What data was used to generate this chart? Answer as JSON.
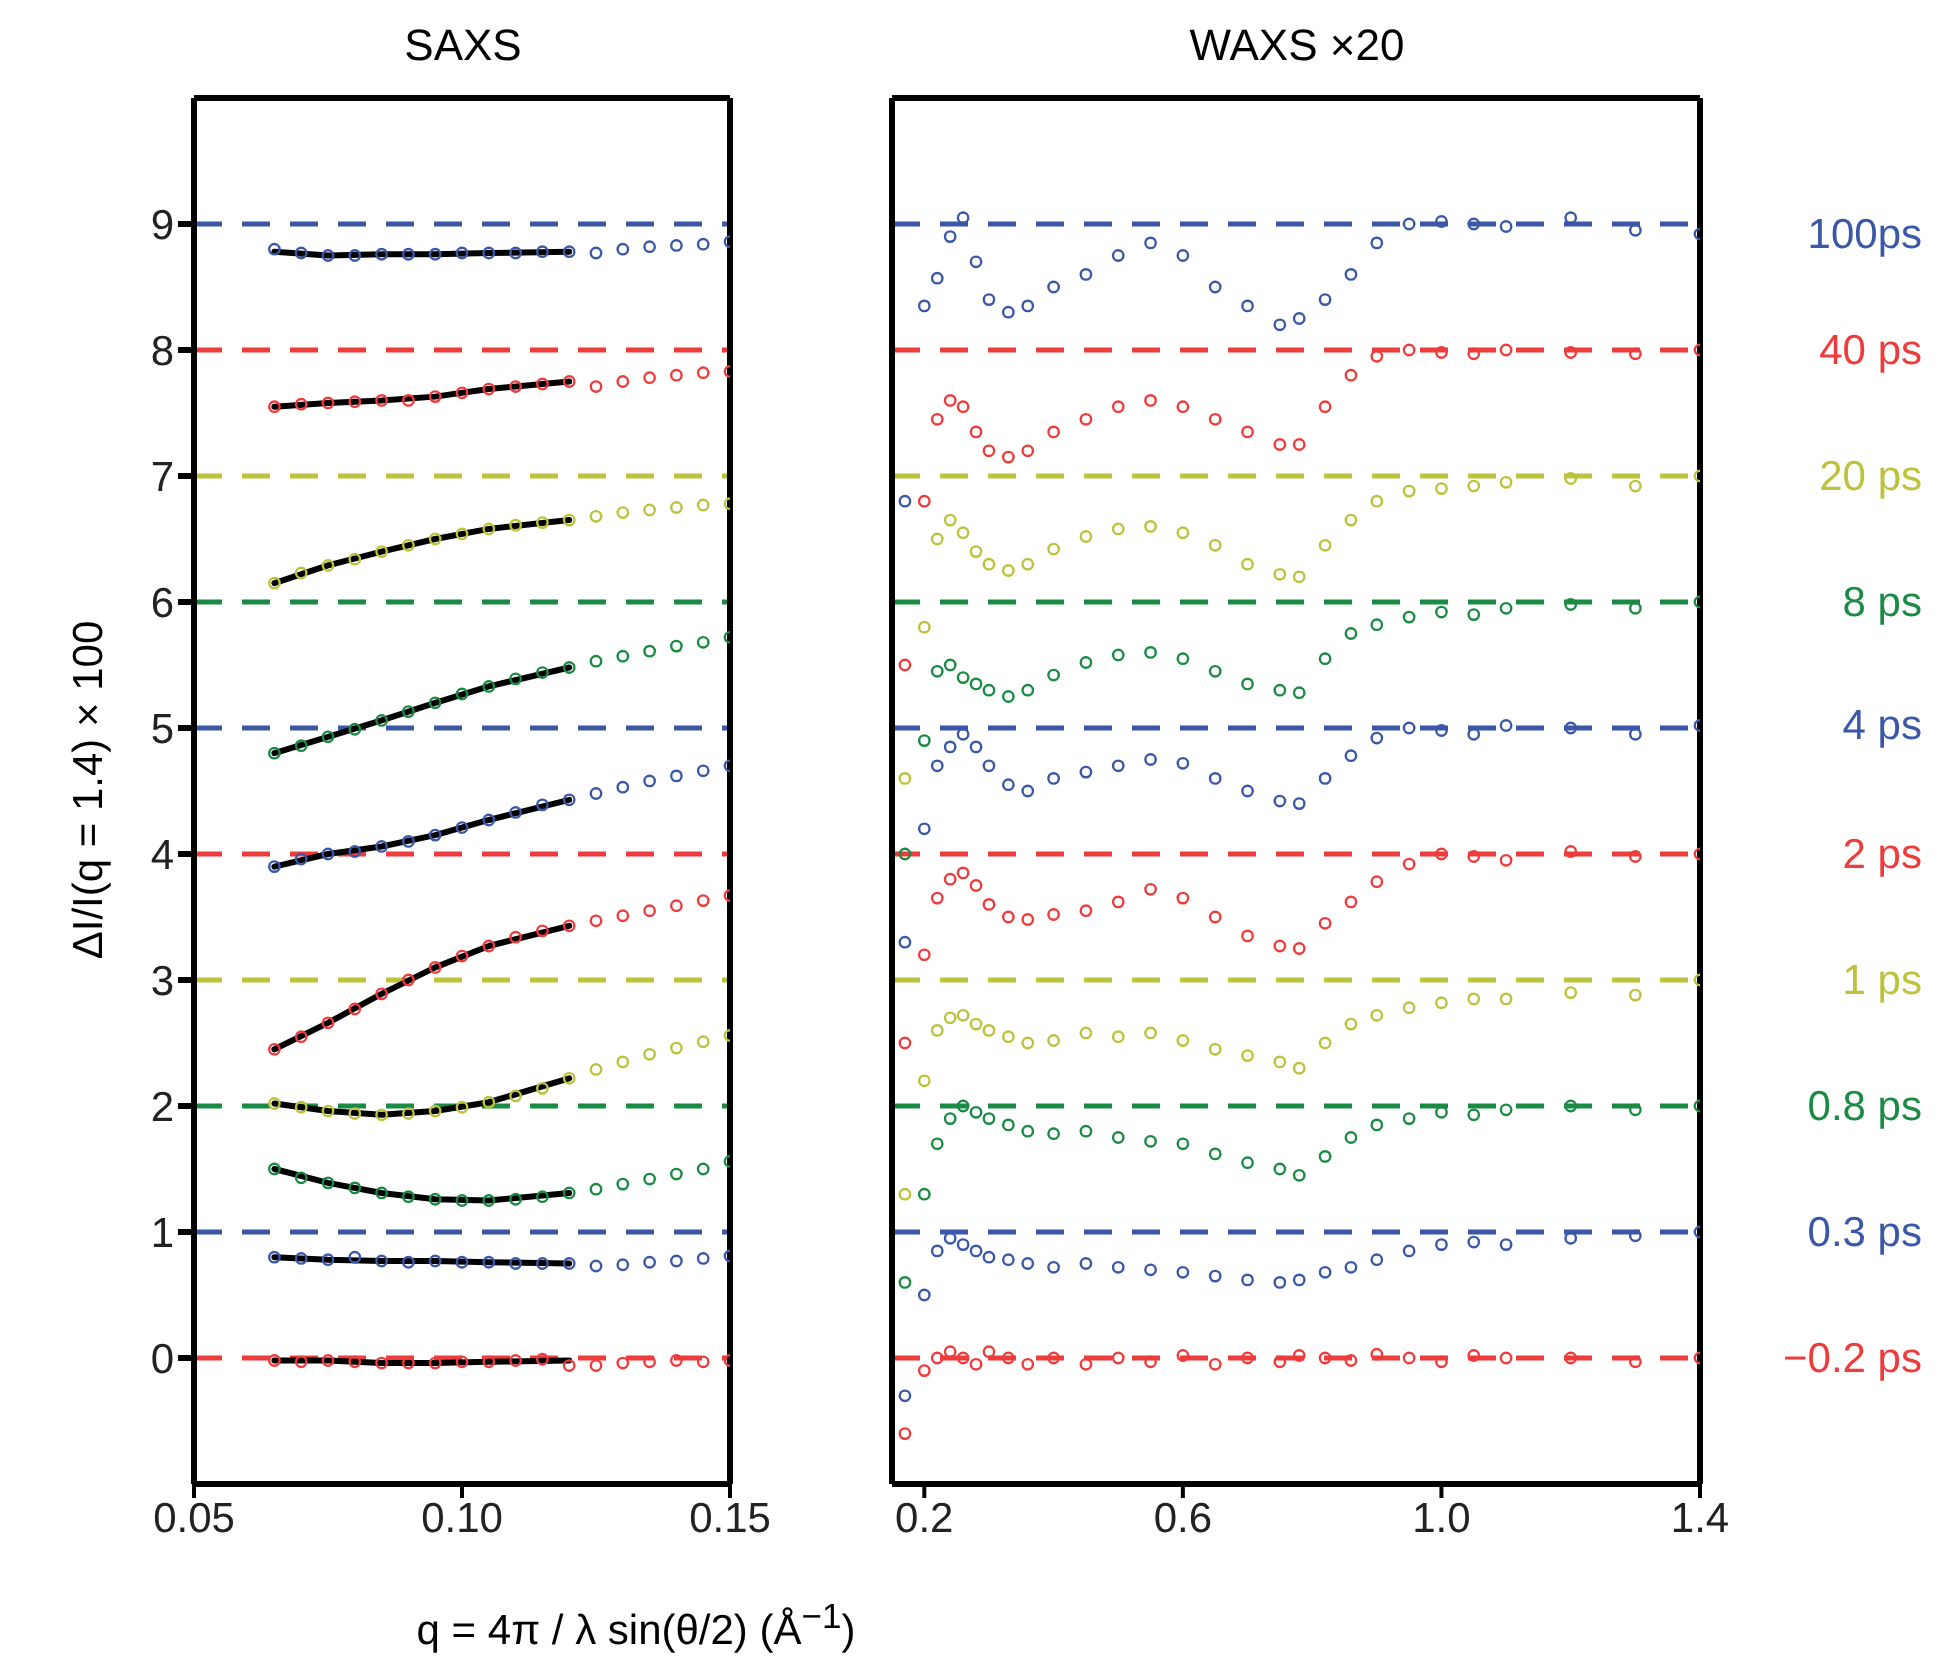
{
  "chart_data": [
    {
      "type": "scatter",
      "title": "SAXS",
      "ylabel": "ΔI/I(q = 1.4) × 100",
      "xlabel": "q = 4π / λ sin(θ/2) (Å$^{−1}$)",
      "marker": "circle",
      "xlim": [
        0.05,
        0.15
      ],
      "xticks": [
        0.05,
        {
          "value": 0.1,
          "label": "0.10"
        },
        0.15
      ],
      "ylim": [
        -1,
        10
      ],
      "yticks": [
        0,
        1,
        2,
        3,
        4,
        5,
        6,
        7,
        8,
        9
      ],
      "x": [
        0.065,
        0.07,
        0.075,
        0.08,
        0.085,
        0.09,
        0.095,
        0.1,
        0.105,
        0.11,
        0.115,
        0.12,
        0.125,
        0.13,
        0.135,
        0.14,
        0.145,
        0.15
      ],
      "ref_lines": [
        {
          "axis": "y",
          "value": 0,
          "color": "#ee3b3b",
          "line_style": "dashed"
        },
        {
          "axis": "y",
          "value": 1,
          "color": "#3b57a8",
          "line_style": "dashed"
        },
        {
          "axis": "y",
          "value": 2,
          "color": "#1b8a45",
          "line_style": "dashed"
        },
        {
          "axis": "y",
          "value": 3,
          "color": "#bcc23a",
          "line_style": "dashed"
        },
        {
          "axis": "y",
          "value": 4,
          "color": "#ee3b3b",
          "line_style": "dashed"
        },
        {
          "axis": "y",
          "value": 5,
          "color": "#3b57a8",
          "line_style": "dashed"
        },
        {
          "axis": "y",
          "value": 6,
          "color": "#1b8a45",
          "line_style": "dashed"
        },
        {
          "axis": "y",
          "value": 7,
          "color": "#bcc23a",
          "line_style": "dashed"
        },
        {
          "axis": "y",
          "value": 8,
          "color": "#ee3b3b",
          "line_style": "dashed"
        },
        {
          "axis": "y",
          "value": 9,
          "color": "#3b57a8",
          "line_style": "dashed"
        }
      ],
      "series": [
        {
          "color": "#ee3b3b",
          "values": [
            -0.02,
            -0.03,
            -0.02,
            -0.03,
            -0.04,
            -0.04,
            -0.04,
            -0.03,
            -0.03,
            -0.02,
            -0.01,
            -0.06,
            -0.06,
            -0.04,
            -0.03,
            -0.02,
            -0.03,
            -0.02
          ]
        },
        {
          "color": "#3b57a8",
          "values": [
            0.8,
            0.79,
            0.78,
            0.8,
            0.77,
            0.76,
            0.77,
            0.76,
            0.76,
            0.75,
            0.75,
            0.75,
            0.73,
            0.74,
            0.76,
            0.77,
            0.79,
            0.81
          ]
        },
        {
          "color": "#1b8a45",
          "values": [
            1.5,
            1.43,
            1.39,
            1.35,
            1.31,
            1.28,
            1.26,
            1.25,
            1.25,
            1.26,
            1.28,
            1.31,
            1.34,
            1.38,
            1.42,
            1.46,
            1.5,
            1.56
          ]
        },
        {
          "color": "#bcc23a",
          "values": [
            2.02,
            1.99,
            1.96,
            1.94,
            1.93,
            1.94,
            1.96,
            1.99,
            2.03,
            2.08,
            2.14,
            2.22,
            2.29,
            2.35,
            2.41,
            2.46,
            2.51,
            2.56
          ]
        },
        {
          "color": "#ee3b3b",
          "values": [
            2.45,
            2.55,
            2.66,
            2.77,
            2.89,
            3.0,
            3.1,
            3.19,
            3.27,
            3.34,
            3.39,
            3.43,
            3.47,
            3.51,
            3.55,
            3.59,
            3.63,
            3.67
          ]
        },
        {
          "color": "#3b57a8",
          "values": [
            3.9,
            3.96,
            4.0,
            4.02,
            4.06,
            4.1,
            4.15,
            4.21,
            4.27,
            4.33,
            4.39,
            4.43,
            4.48,
            4.53,
            4.58,
            4.62,
            4.66,
            4.7
          ]
        },
        {
          "color": "#1b8a45",
          "values": [
            4.8,
            4.86,
            4.93,
            4.99,
            5.06,
            5.13,
            5.2,
            5.27,
            5.33,
            5.39,
            5.44,
            5.48,
            5.53,
            5.57,
            5.61,
            5.65,
            5.68,
            5.72
          ]
        },
        {
          "color": "#bcc23a",
          "values": [
            6.15,
            6.23,
            6.29,
            6.34,
            6.4,
            6.45,
            6.5,
            6.54,
            6.58,
            6.61,
            6.63,
            6.65,
            6.68,
            6.71,
            6.73,
            6.75,
            6.77,
            6.78
          ]
        },
        {
          "color": "#ee3b3b",
          "values": [
            7.55,
            7.57,
            7.58,
            7.59,
            7.6,
            7.6,
            7.63,
            7.66,
            7.69,
            7.71,
            7.73,
            7.75,
            7.71,
            7.75,
            7.78,
            7.8,
            7.82,
            7.83
          ]
        },
        {
          "color": "#3b57a8",
          "values": [
            8.8,
            8.77,
            8.75,
            8.75,
            8.76,
            8.76,
            8.76,
            8.77,
            8.77,
            8.77,
            8.78,
            8.78,
            8.77,
            8.8,
            8.82,
            8.83,
            8.84,
            8.86
          ]
        },
        {
          "type": "line",
          "marker": "none",
          "color": "#000000",
          "x": [
            0.065,
            0.075,
            0.085,
            0.095,
            0.105,
            0.12
          ],
          "values": [
            -0.02,
            -0.02,
            -0.04,
            -0.04,
            -0.03,
            -0.02
          ]
        },
        {
          "type": "line",
          "marker": "none",
          "color": "#000000",
          "x": [
            0.065,
            0.075,
            0.085,
            0.095,
            0.105,
            0.12
          ],
          "values": [
            0.8,
            0.78,
            0.77,
            0.77,
            0.76,
            0.75
          ]
        },
        {
          "type": "line",
          "marker": "none",
          "color": "#000000",
          "x": [
            0.065,
            0.075,
            0.085,
            0.095,
            0.105,
            0.12
          ],
          "values": [
            1.5,
            1.39,
            1.31,
            1.26,
            1.25,
            1.31
          ]
        },
        {
          "type": "line",
          "marker": "none",
          "color": "#000000",
          "x": [
            0.065,
            0.075,
            0.085,
            0.095,
            0.105,
            0.12
          ],
          "values": [
            2.02,
            1.96,
            1.93,
            1.96,
            2.03,
            2.22
          ]
        },
        {
          "type": "line",
          "marker": "none",
          "color": "#000000",
          "x": [
            0.065,
            0.075,
            0.085,
            0.095,
            0.105,
            0.12
          ],
          "values": [
            2.45,
            2.66,
            2.89,
            3.1,
            3.27,
            3.43
          ]
        },
        {
          "type": "line",
          "marker": "none",
          "color": "#000000",
          "x": [
            0.065,
            0.075,
            0.085,
            0.095,
            0.105,
            0.12
          ],
          "values": [
            3.9,
            4.0,
            4.06,
            4.15,
            4.27,
            4.43
          ]
        },
        {
          "type": "line",
          "marker": "none",
          "color": "#000000",
          "x": [
            0.065,
            0.075,
            0.085,
            0.095,
            0.105,
            0.12
          ],
          "values": [
            4.8,
            4.93,
            5.06,
            5.2,
            5.33,
            5.48
          ]
        },
        {
          "type": "line",
          "marker": "none",
          "color": "#000000",
          "x": [
            0.065,
            0.075,
            0.085,
            0.095,
            0.105,
            0.12
          ],
          "values": [
            6.15,
            6.29,
            6.4,
            6.5,
            6.58,
            6.65
          ]
        },
        {
          "type": "line",
          "marker": "none",
          "color": "#000000",
          "x": [
            0.065,
            0.075,
            0.085,
            0.095,
            0.105,
            0.12
          ],
          "values": [
            7.55,
            7.58,
            7.6,
            7.63,
            7.69,
            7.75
          ]
        },
        {
          "type": "line",
          "marker": "none",
          "color": "#000000",
          "x": [
            0.065,
            0.075,
            0.085,
            0.095,
            0.105,
            0.12
          ],
          "values": [
            8.78,
            8.75,
            8.76,
            8.76,
            8.77,
            8.78
          ]
        }
      ]
    },
    {
      "type": "scatter",
      "title": "WAXS ×20",
      "marker": "circle",
      "tick_labels": "x",
      "xlim": [
        0.15,
        1.4
      ],
      "xticks": [
        0.2,
        0.6,
        {
          "value": 1,
          "label": "1.0"
        },
        1.4
      ],
      "ylim": [
        -1,
        10
      ],
      "x": [
        0.17,
        0.2,
        0.22,
        0.24,
        0.26,
        0.28,
        0.3,
        0.33,
        0.36,
        0.4,
        0.45,
        0.5,
        0.55,
        0.6,
        0.65,
        0.7,
        0.75,
        0.78,
        0.82,
        0.86,
        0.9,
        0.95,
        1.0,
        1.05,
        1.1,
        1.2,
        1.3,
        1.4
      ],
      "ref_lines": [
        {
          "axis": "y",
          "value": 0,
          "color": "#ee3b3b",
          "line_style": "dashed"
        },
        {
          "axis": "y",
          "value": 1,
          "color": "#3b57a8",
          "line_style": "dashed"
        },
        {
          "axis": "y",
          "value": 2,
          "color": "#1b8a45",
          "line_style": "dashed"
        },
        {
          "axis": "y",
          "value": 3,
          "color": "#bcc23a",
          "line_style": "dashed"
        },
        {
          "axis": "y",
          "value": 4,
          "color": "#ee3b3b",
          "line_style": "dashed"
        },
        {
          "axis": "y",
          "value": 5,
          "color": "#3b57a8",
          "line_style": "dashed"
        },
        {
          "axis": "y",
          "value": 6,
          "color": "#1b8a45",
          "line_style": "dashed"
        },
        {
          "axis": "y",
          "value": 7,
          "color": "#bcc23a",
          "line_style": "dashed"
        },
        {
          "axis": "y",
          "value": 8,
          "color": "#ee3b3b",
          "line_style": "dashed"
        },
        {
          "axis": "y",
          "value": 9,
          "color": "#3b57a8",
          "line_style": "dashed"
        }
      ],
      "series": [
        {
          "name": "−0.2 ps",
          "color": "#ee3b3b",
          "values": [
            -0.6,
            -0.1,
            0.0,
            0.05,
            0.0,
            -0.05,
            0.05,
            0.0,
            -0.05,
            0.0,
            -0.05,
            0.0,
            -0.03,
            0.02,
            -0.05,
            0.0,
            -0.03,
            0.02,
            0.0,
            -0.02,
            0.03,
            0.0,
            -0.03,
            0.02,
            0.0,
            0.0,
            -0.03,
            0.0
          ]
        },
        {
          "name": "0.3 ps",
          "color": "#3b57a8",
          "values": [
            -0.3,
            0.5,
            0.85,
            0.95,
            0.9,
            0.85,
            0.8,
            0.78,
            0.75,
            0.72,
            0.75,
            0.72,
            0.7,
            0.68,
            0.65,
            0.62,
            0.6,
            0.62,
            0.68,
            0.72,
            0.78,
            0.85,
            0.9,
            0.92,
            0.9,
            0.95,
            0.97,
            1.0
          ]
        },
        {
          "name": "0.8 ps",
          "color": "#1b8a45",
          "values": [
            0.6,
            1.3,
            1.7,
            1.9,
            2.0,
            1.95,
            1.9,
            1.85,
            1.8,
            1.78,
            1.8,
            1.75,
            1.72,
            1.7,
            1.62,
            1.55,
            1.5,
            1.45,
            1.6,
            1.75,
            1.85,
            1.9,
            1.95,
            1.93,
            1.97,
            2.0,
            1.97,
            2.0
          ]
        },
        {
          "name": "1 ps",
          "color": "#bcc23a",
          "values": [
            1.3,
            2.2,
            2.6,
            2.7,
            2.72,
            2.65,
            2.6,
            2.55,
            2.5,
            2.52,
            2.58,
            2.55,
            2.58,
            2.52,
            2.45,
            2.4,
            2.35,
            2.3,
            2.5,
            2.65,
            2.72,
            2.78,
            2.82,
            2.85,
            2.85,
            2.9,
            2.88,
            3.0
          ]
        },
        {
          "name": "2 ps",
          "color": "#ee3b3b",
          "values": [
            2.5,
            3.2,
            3.65,
            3.8,
            3.85,
            3.75,
            3.6,
            3.5,
            3.48,
            3.52,
            3.55,
            3.62,
            3.72,
            3.65,
            3.5,
            3.35,
            3.27,
            3.25,
            3.45,
            3.62,
            3.78,
            3.92,
            4.0,
            3.98,
            3.95,
            4.02,
            3.98,
            4.0
          ]
        },
        {
          "name": "4 ps",
          "color": "#3b57a8",
          "values": [
            3.3,
            4.2,
            4.7,
            4.85,
            4.95,
            4.85,
            4.7,
            4.55,
            4.5,
            4.6,
            4.65,
            4.7,
            4.75,
            4.72,
            4.6,
            4.5,
            4.42,
            4.4,
            4.6,
            4.78,
            4.92,
            5.0,
            4.98,
            4.95,
            5.02,
            5.0,
            4.95,
            5.02
          ]
        },
        {
          "name": "8 ps",
          "color": "#1b8a45",
          "values": [
            4.0,
            4.9,
            5.45,
            5.5,
            5.4,
            5.35,
            5.3,
            5.25,
            5.3,
            5.42,
            5.52,
            5.58,
            5.6,
            5.55,
            5.45,
            5.35,
            5.3,
            5.28,
            5.55,
            5.75,
            5.82,
            5.88,
            5.92,
            5.9,
            5.95,
            5.98,
            5.95,
            6.0
          ]
        },
        {
          "name": "20 ps",
          "color": "#bcc23a",
          "values": [
            4.6,
            5.8,
            6.5,
            6.65,
            6.55,
            6.4,
            6.3,
            6.25,
            6.3,
            6.42,
            6.52,
            6.58,
            6.6,
            6.55,
            6.45,
            6.3,
            6.22,
            6.2,
            6.45,
            6.65,
            6.8,
            6.88,
            6.9,
            6.92,
            6.95,
            6.98,
            6.92,
            7.0
          ]
        },
        {
          "name": "40 ps",
          "color": "#ee3b3b",
          "values": [
            5.5,
            6.8,
            7.45,
            7.6,
            7.55,
            7.35,
            7.2,
            7.15,
            7.2,
            7.35,
            7.45,
            7.55,
            7.6,
            7.55,
            7.45,
            7.35,
            7.25,
            7.25,
            7.55,
            7.8,
            7.95,
            8.0,
            7.98,
            7.97,
            8.0,
            7.98,
            7.97,
            8.0
          ]
        },
        {
          "name": "100ps",
          "color": "#3b57a8",
          "values": [
            6.8,
            8.35,
            8.57,
            8.9,
            9.05,
            8.7,
            8.4,
            8.3,
            8.35,
            8.5,
            8.6,
            8.75,
            8.85,
            8.75,
            8.5,
            8.35,
            8.2,
            8.25,
            8.4,
            8.6,
            8.85,
            9.0,
            9.02,
            9.0,
            8.98,
            9.05,
            8.95,
            8.92
          ]
        }
      ]
    }
  ]
}
